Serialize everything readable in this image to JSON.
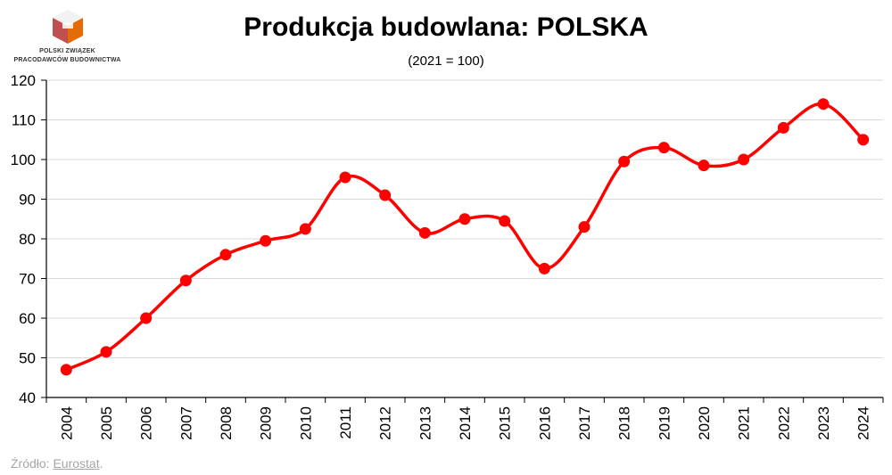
{
  "header": {
    "logo_icon": "construction-federation-logo",
    "logo_line1": "POLSKI ZWIĄZEK",
    "logo_line2": "PRACODAWCÓW BUDOWNICTWA"
  },
  "chart_data": {
    "type": "line",
    "title": "Produkcja budowlana: POLSKA",
    "subtitle": "(2021 = 100)",
    "xlabel": "",
    "ylabel": "",
    "x": [
      "2004",
      "2005",
      "2006",
      "2007",
      "2008",
      "2009",
      "2010",
      "2011",
      "2012",
      "2013",
      "2014",
      "2015",
      "2016",
      "2017",
      "2018",
      "2019",
      "2020",
      "2021",
      "2022",
      "2023",
      "2024"
    ],
    "series": [
      {
        "values": [
          47,
          51.5,
          60,
          69.5,
          76,
          79.5,
          82.5,
          95.5,
          91,
          81.5,
          85,
          84.5,
          72.5,
          83,
          99.5,
          103,
          98.5,
          100,
          108,
          114,
          105
        ],
        "color": "#ff0000"
      }
    ],
    "ylim": [
      40,
      120
    ],
    "yticks": [
      40,
      50,
      60,
      70,
      80,
      90,
      100,
      110,
      120
    ],
    "grid": true,
    "legend": "none"
  },
  "footer": {
    "source_prefix": "Źródło: ",
    "source_link": "Eurostat",
    "source_suffix": "."
  }
}
